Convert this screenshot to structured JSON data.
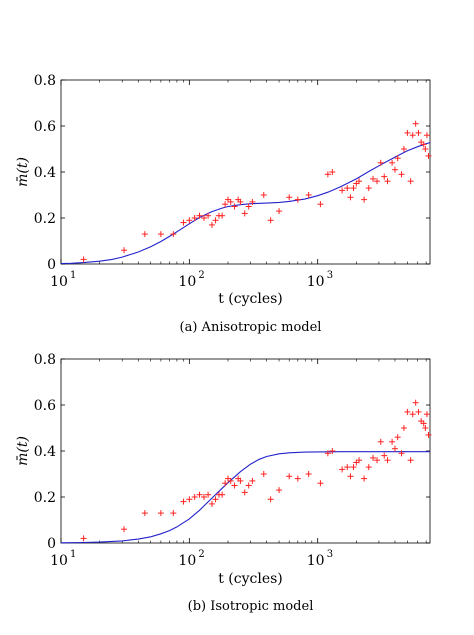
{
  "figure": {
    "panels": [
      {
        "caption": "(a) Anisotropic model",
        "xlabel": "t (cycles)",
        "ylabel": "m̄(t)"
      },
      {
        "caption": "(b) Isotropic model",
        "xlabel": "t (cycles)",
        "ylabel": "m̄(t)"
      }
    ]
  },
  "colors": {
    "model_curve": "#2222cc",
    "observed_points": "#ff2222",
    "axes": "#000000"
  },
  "chart_data": [
    {
      "type": "scatter",
      "title": "",
      "caption": "(a) Anisotropic model",
      "xlabel": "t (cycles)",
      "ylabel": "m̄(t)",
      "xscale": "log",
      "xlim": [
        10,
        7500
      ],
      "ylim": [
        0,
        0.8
      ],
      "x_ticks": [
        10,
        100,
        1000
      ],
      "x_tick_labels": [
        "10",
        "10",
        "10"
      ],
      "x_tick_exponents": [
        "1",
        "2",
        "3"
      ],
      "y_ticks": [
        0,
        0.2,
        0.4,
        0.6,
        0.8
      ],
      "y_tick_labels": [
        "0",
        "0.2",
        "0.4",
        "0.6",
        "0.8"
      ],
      "grid": false,
      "series": [
        {
          "kind": "line",
          "color": "#2222cc",
          "x": [
            10,
            12,
            15,
            20,
            25,
            30,
            40,
            50,
            60,
            70,
            80,
            100,
            120,
            150,
            180,
            200,
            250,
            300,
            400,
            500,
            600,
            800,
            1000,
            1200,
            1500,
            2000,
            2500,
            3000,
            4000,
            5000,
            6000,
            7000,
            7500
          ],
          "y": [
            0.002,
            0.003,
            0.006,
            0.012,
            0.02,
            0.03,
            0.052,
            0.075,
            0.098,
            0.12,
            0.14,
            0.175,
            0.202,
            0.228,
            0.243,
            0.25,
            0.258,
            0.262,
            0.265,
            0.268,
            0.272,
            0.283,
            0.297,
            0.312,
            0.335,
            0.37,
            0.402,
            0.427,
            0.465,
            0.492,
            0.51,
            0.523,
            0.528
          ]
        },
        {
          "kind": "scatter",
          "marker": "+",
          "color": "#ff2222",
          "x": [
            15,
            31,
            45,
            60,
            75,
            90,
            100,
            110,
            120,
            130,
            140,
            150,
            160,
            170,
            180,
            190,
            200,
            210,
            225,
            240,
            250,
            270,
            290,
            310,
            380,
            430,
            500,
            600,
            700,
            850,
            1050,
            1200,
            1300,
            1550,
            1700,
            1800,
            1900,
            2000,
            2100,
            2300,
            2500,
            2700,
            2900,
            3100,
            3300,
            3500,
            3800,
            4000,
            4200,
            4500,
            4700,
            5000,
            5300,
            5500,
            5800,
            6100,
            6400,
            6700,
            6900,
            7100,
            7300
          ],
          "y": [
            0.02,
            0.06,
            0.13,
            0.13,
            0.13,
            0.18,
            0.19,
            0.2,
            0.21,
            0.2,
            0.21,
            0.17,
            0.19,
            0.21,
            0.21,
            0.26,
            0.28,
            0.27,
            0.25,
            0.28,
            0.27,
            0.22,
            0.25,
            0.27,
            0.3,
            0.19,
            0.23,
            0.29,
            0.28,
            0.3,
            0.26,
            0.39,
            0.4,
            0.32,
            0.33,
            0.29,
            0.33,
            0.35,
            0.36,
            0.28,
            0.33,
            0.37,
            0.36,
            0.44,
            0.38,
            0.36,
            0.44,
            0.41,
            0.46,
            0.39,
            0.5,
            0.57,
            0.36,
            0.56,
            0.61,
            0.57,
            0.53,
            0.52,
            0.5,
            0.56,
            0.47
          ]
        }
      ]
    },
    {
      "type": "scatter",
      "title": "",
      "caption": "(b) Isotropic model",
      "xlabel": "t (cycles)",
      "ylabel": "m̄(t)",
      "xscale": "log",
      "xlim": [
        10,
        7500
      ],
      "ylim": [
        0,
        0.8
      ],
      "x_ticks": [
        10,
        100,
        1000
      ],
      "x_tick_labels": [
        "10",
        "10",
        "10"
      ],
      "x_tick_exponents": [
        "1",
        "2",
        "3"
      ],
      "y_ticks": [
        0,
        0.2,
        0.4,
        0.6,
        0.8
      ],
      "y_tick_labels": [
        "0",
        "0.2",
        "0.4",
        "0.6",
        "0.8"
      ],
      "grid": false,
      "series": [
        {
          "kind": "line",
          "color": "#2222cc",
          "x": [
            10,
            15,
            20,
            30,
            40,
            50,
            60,
            70,
            80,
            100,
            120,
            150,
            180,
            200,
            250,
            300,
            350,
            400,
            500,
            600,
            800,
            1000,
            1500,
            2000,
            3000,
            5000,
            7500
          ],
          "y": [
            0.001,
            0.002,
            0.004,
            0.009,
            0.017,
            0.027,
            0.04,
            0.054,
            0.07,
            0.105,
            0.142,
            0.195,
            0.238,
            0.262,
            0.31,
            0.343,
            0.364,
            0.376,
            0.388,
            0.392,
            0.395,
            0.396,
            0.397,
            0.397,
            0.397,
            0.397,
            0.397
          ]
        },
        {
          "kind": "scatter",
          "marker": "+",
          "color": "#ff2222",
          "x": [
            15,
            31,
            45,
            60,
            75,
            90,
            100,
            110,
            120,
            130,
            140,
            150,
            160,
            170,
            180,
            190,
            200,
            210,
            225,
            240,
            250,
            270,
            290,
            310,
            380,
            430,
            500,
            600,
            700,
            850,
            1050,
            1200,
            1300,
            1550,
            1700,
            1800,
            1900,
            2000,
            2100,
            2300,
            2500,
            2700,
            2900,
            3100,
            3300,
            3500,
            3800,
            4000,
            4200,
            4500,
            4700,
            5000,
            5300,
            5500,
            5800,
            6100,
            6400,
            6700,
            6900,
            7100,
            7300
          ],
          "y": [
            0.02,
            0.06,
            0.13,
            0.13,
            0.13,
            0.18,
            0.19,
            0.2,
            0.21,
            0.2,
            0.21,
            0.17,
            0.19,
            0.21,
            0.21,
            0.26,
            0.28,
            0.27,
            0.25,
            0.28,
            0.27,
            0.22,
            0.25,
            0.27,
            0.3,
            0.19,
            0.23,
            0.29,
            0.28,
            0.3,
            0.26,
            0.39,
            0.4,
            0.32,
            0.33,
            0.29,
            0.33,
            0.35,
            0.36,
            0.28,
            0.33,
            0.37,
            0.36,
            0.44,
            0.38,
            0.36,
            0.44,
            0.41,
            0.46,
            0.39,
            0.5,
            0.57,
            0.36,
            0.56,
            0.61,
            0.57,
            0.53,
            0.52,
            0.5,
            0.56,
            0.47
          ]
        }
      ]
    }
  ]
}
